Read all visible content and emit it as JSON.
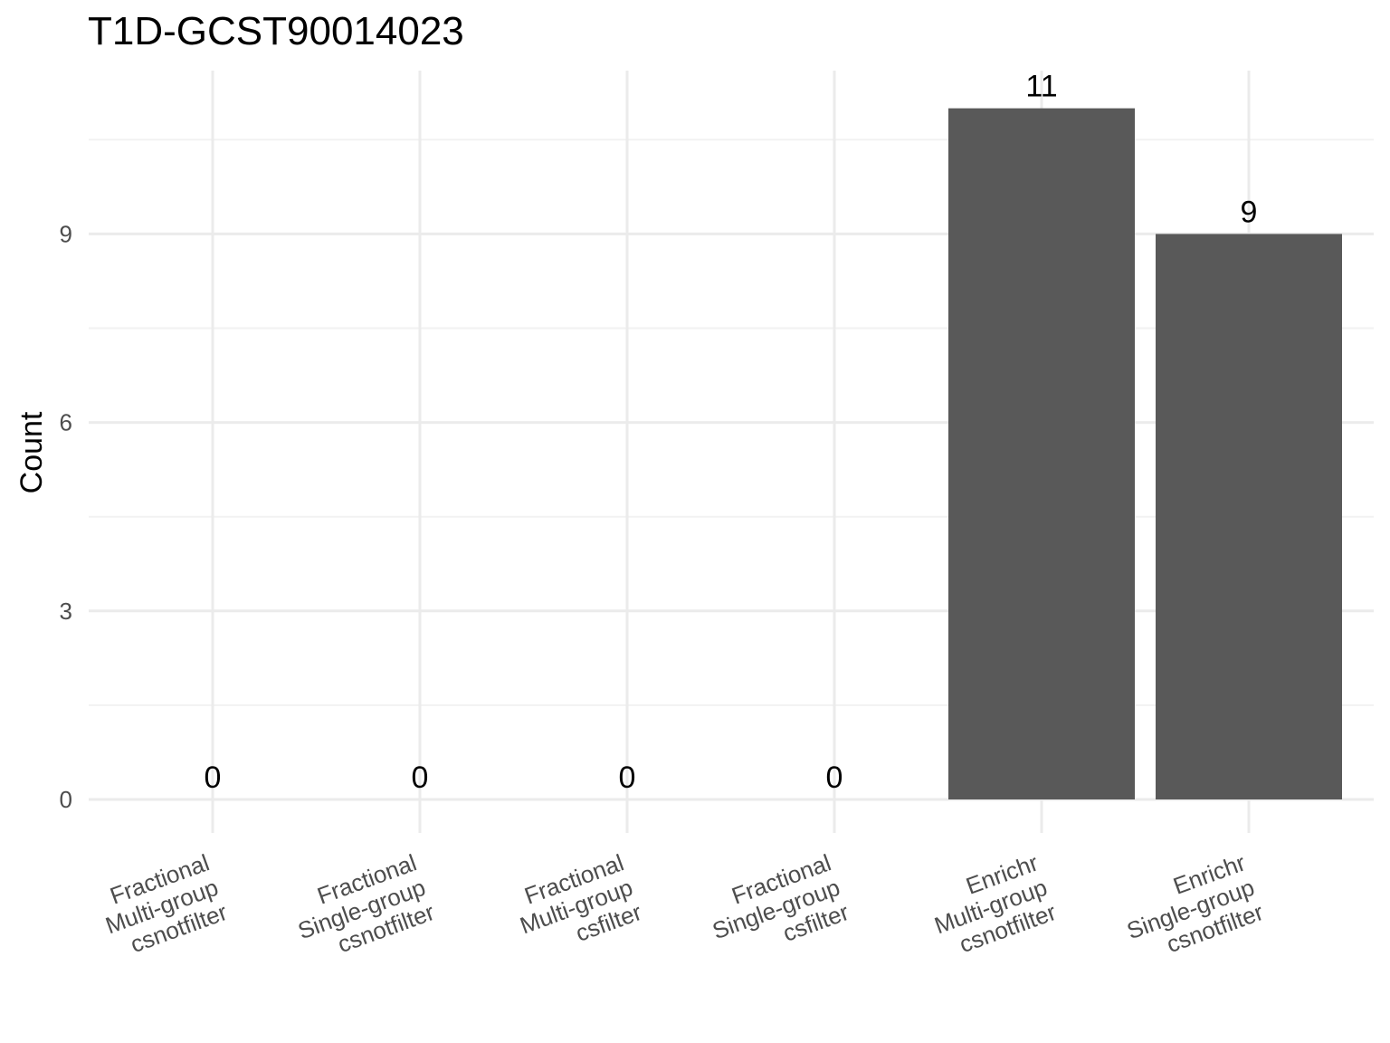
{
  "chart_data": {
    "type": "bar",
    "title": "T1D-GCST90014023",
    "xlabel": "",
    "ylabel": "Count",
    "categories": [
      [
        "Fractional",
        "Multi-group",
        "csnotfilter"
      ],
      [
        "Fractional",
        "Single-group",
        "csnotfilter"
      ],
      [
        "Fractional",
        "Multi-group",
        "csfilter"
      ],
      [
        "Fractional",
        "Single-group",
        "csfilter"
      ],
      [
        "Enrichr",
        "Multi-group",
        "csnotfilter"
      ],
      [
        "Enrichr",
        "Single-group",
        "csnotfilter"
      ]
    ],
    "values": [
      0,
      0,
      0,
      0,
      11,
      9
    ],
    "data_labels": [
      "0",
      "0",
      "0",
      "0",
      "11",
      "9"
    ],
    "y_ticks": [
      0,
      3,
      6,
      9
    ],
    "y_tick_labels": [
      "0",
      "3",
      "6",
      "9"
    ],
    "ylim": [
      0,
      11.55
    ],
    "grid": true,
    "bar_color": "#595959"
  }
}
